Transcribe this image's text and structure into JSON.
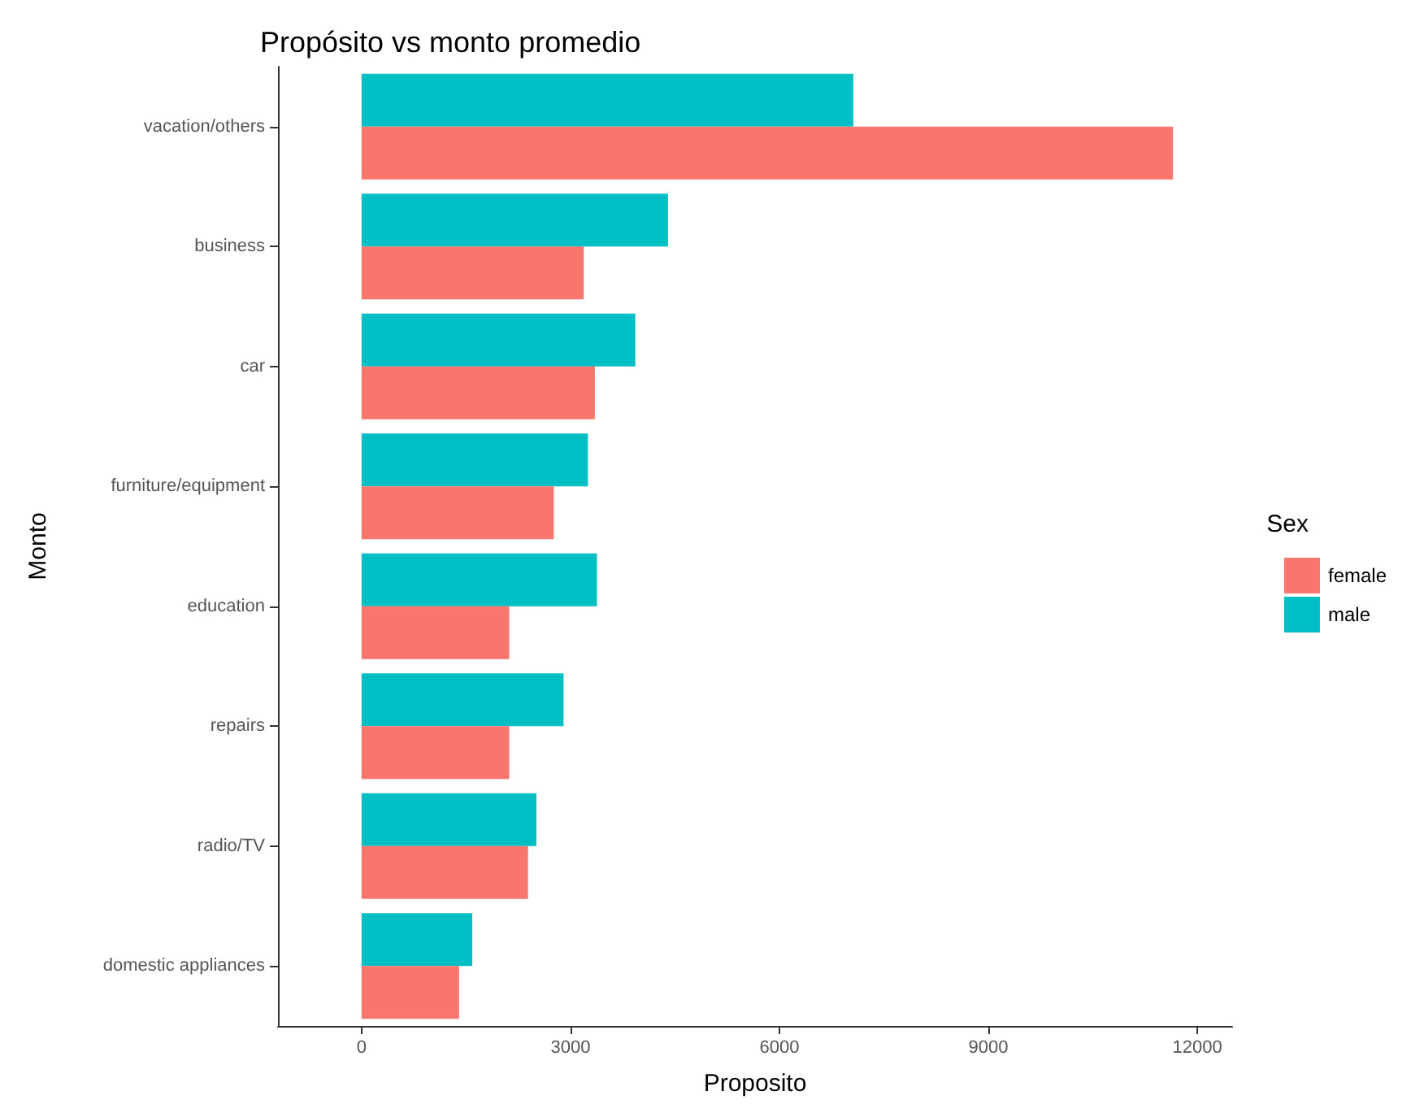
{
  "chart_data": {
    "type": "bar",
    "orientation": "horizontal",
    "title": "Propósito vs monto promedio",
    "xlabel": "Proposito",
    "ylabel": "Monto",
    "legend_title": "Sex",
    "legend": "right",
    "grid": false,
    "categories": [
      "vacation/others",
      "business",
      "car",
      "furniture/equipment",
      "education",
      "repairs",
      "radio/TV",
      "domestic appliances"
    ],
    "series": [
      {
        "name": "female",
        "color": "#f8766d",
        "values": [
          11650,
          3190,
          3350,
          2760,
          2120,
          2120,
          2390,
          1400
        ]
      },
      {
        "name": "male",
        "color": "#00bfc4",
        "values": [
          7060,
          4400,
          3930,
          3250,
          3380,
          2900,
          2510,
          1590
        ]
      }
    ],
    "xlim": [
      -1200,
      12500
    ],
    "xticks": [
      0,
      3000,
      6000,
      9000,
      12000
    ]
  }
}
